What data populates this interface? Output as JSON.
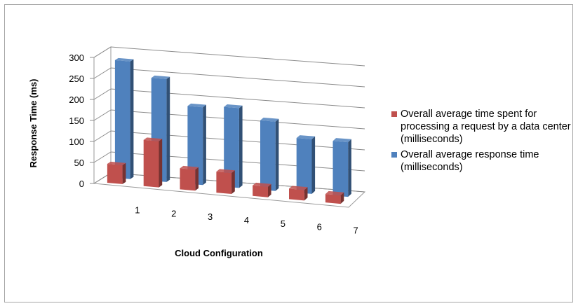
{
  "chart_data": {
    "type": "bar",
    "ylabel": "Response Time (ms)",
    "xlabel": "Cloud Configuration",
    "categories": [
      "1",
      "2",
      "3",
      "4",
      "5",
      "6",
      "7"
    ],
    "yticks": [
      "0",
      "50",
      "100",
      "150",
      "200",
      "250",
      "300"
    ],
    "ylim": [
      0,
      300
    ],
    "grid": true,
    "legend_position": "right",
    "series": [
      {
        "name": "Overall average time spent for processing  a request by a data center (milliseconds)",
        "color": "#c0504d",
        "values": [
          45,
          110,
          50,
          50,
          25,
          25,
          20
        ]
      },
      {
        "name": "Overall average response time (milliseconds)",
        "color": "#4f81bd",
        "values": [
          280,
          245,
          185,
          190,
          165,
          130,
          130
        ]
      }
    ]
  }
}
